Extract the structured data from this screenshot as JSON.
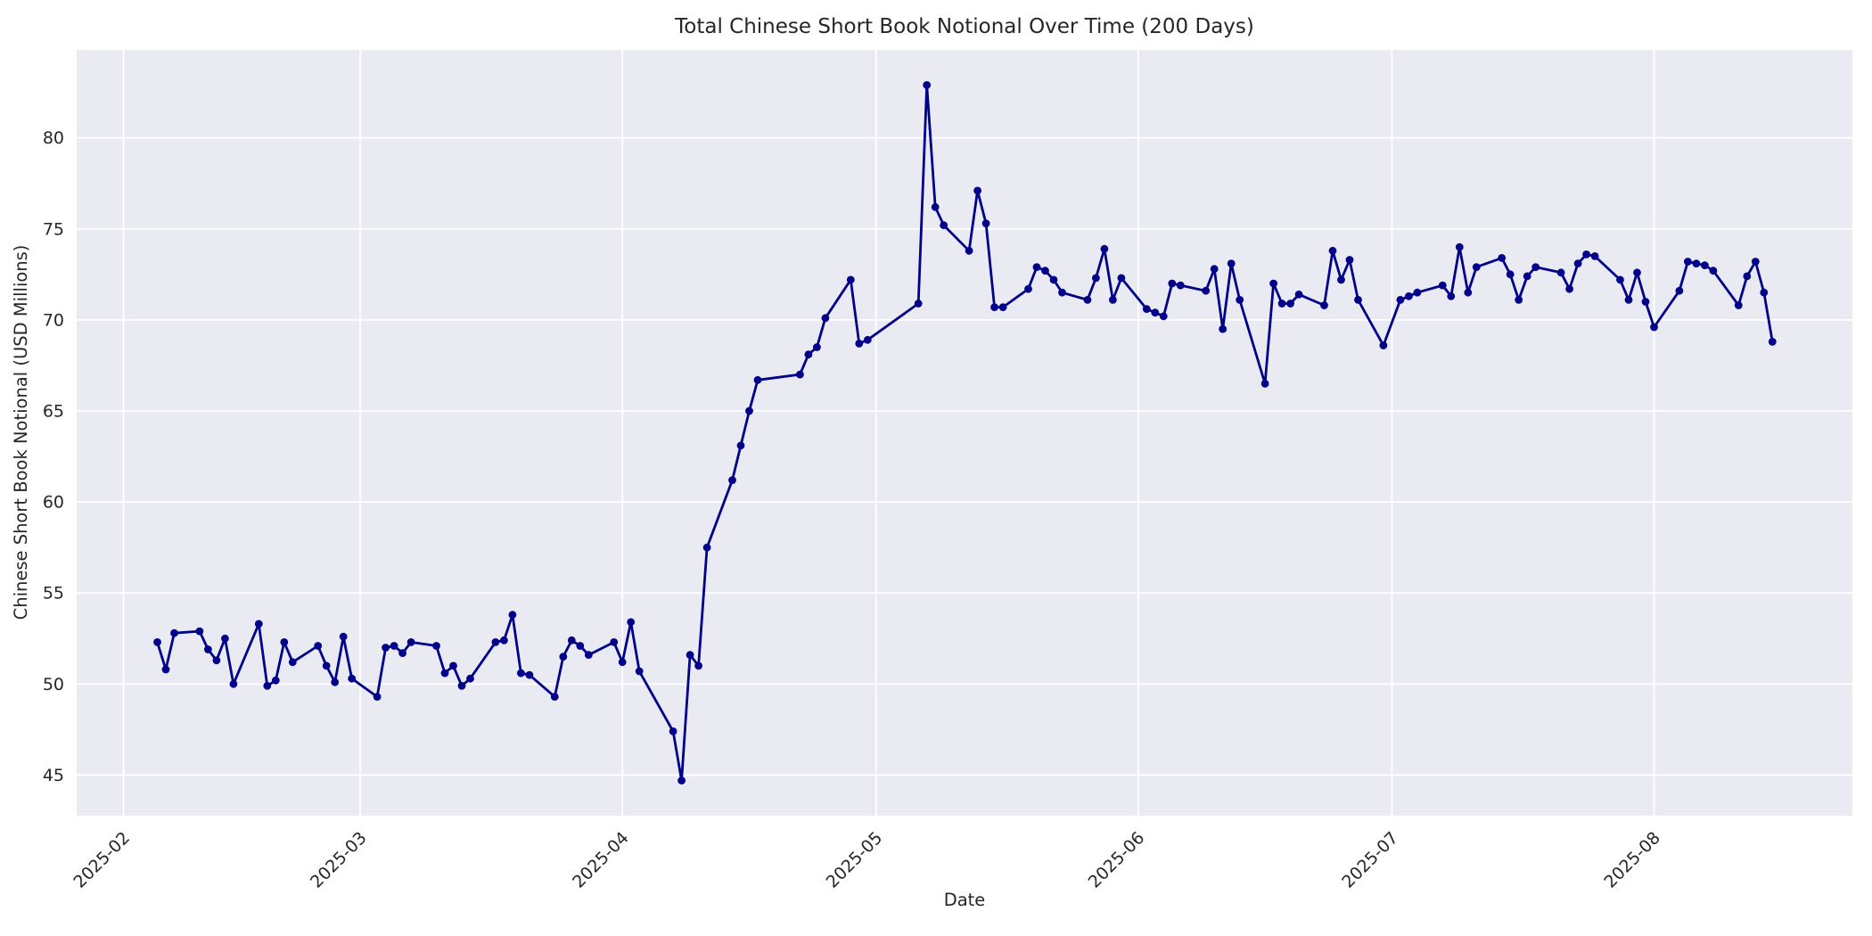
{
  "figure": {
    "title": "Total Chinese Short Book Notional Over Time (200 Days)",
    "xlabel": "Date",
    "ylabel": "Chinese Short Book Notional (USD Millions)"
  },
  "chart_data": {
    "type": "line",
    "title": "Total Chinese Short Book Notional Over Time (200 Days)",
    "xlabel": "Date",
    "ylabel": "Chinese Short Book Notional (USD Millions)",
    "legend": false,
    "grid": true,
    "marker": "circle",
    "ylim": [
      42.77,
      84.83
    ],
    "xlim": [
      "2025-01-26T11:00:00Z",
      "2025-08-24T11:00:00Z"
    ],
    "y_ticks": [
      45,
      50,
      55,
      60,
      65,
      70,
      75,
      80
    ],
    "x_ticks": [
      {
        "date": "2025-02-01",
        "label": "2025-02"
      },
      {
        "date": "2025-03-01",
        "label": "2025-03"
      },
      {
        "date": "2025-04-01",
        "label": "2025-04"
      },
      {
        "date": "2025-05-01",
        "label": "2025-05"
      },
      {
        "date": "2025-06-01",
        "label": "2025-06"
      },
      {
        "date": "2025-07-01",
        "label": "2025-07"
      },
      {
        "date": "2025-08-01",
        "label": "2025-08"
      }
    ],
    "colors": {
      "line": "#00008B",
      "marker": "#00008B",
      "plot_bg": "#EAEAF2",
      "grid": "#FFFFFF",
      "text": "#262626",
      "figure_bg": "#FFFFFF"
    },
    "x": [
      "2025-02-05",
      "2025-02-06",
      "2025-02-07",
      "2025-02-10",
      "2025-02-11",
      "2025-02-12",
      "2025-02-13",
      "2025-02-14",
      "2025-02-17",
      "2025-02-18",
      "2025-02-19",
      "2025-02-20",
      "2025-02-21",
      "2025-02-24",
      "2025-02-25",
      "2025-02-26",
      "2025-02-27",
      "2025-02-28",
      "2025-03-03",
      "2025-03-04",
      "2025-03-05",
      "2025-03-06",
      "2025-03-07",
      "2025-03-10",
      "2025-03-11",
      "2025-03-12",
      "2025-03-13",
      "2025-03-14",
      "2025-03-17",
      "2025-03-18",
      "2025-03-19",
      "2025-03-20",
      "2025-03-21",
      "2025-03-24",
      "2025-03-25",
      "2025-03-26",
      "2025-03-27",
      "2025-03-28",
      "2025-03-31",
      "2025-04-01",
      "2025-04-02",
      "2025-04-03",
      "2025-04-07",
      "2025-04-08",
      "2025-04-09",
      "2025-04-10",
      "2025-04-11",
      "2025-04-14",
      "2025-04-15",
      "2025-04-16",
      "2025-04-17",
      "2025-04-22",
      "2025-04-23",
      "2025-04-24",
      "2025-04-25",
      "2025-04-28",
      "2025-04-29",
      "2025-04-30",
      "2025-05-06",
      "2025-05-07",
      "2025-05-08",
      "2025-05-09",
      "2025-05-12",
      "2025-05-13",
      "2025-05-14",
      "2025-05-15",
      "2025-05-16",
      "2025-05-19",
      "2025-05-20",
      "2025-05-21",
      "2025-05-22",
      "2025-05-23",
      "2025-05-26",
      "2025-05-27",
      "2025-05-28",
      "2025-05-29",
      "2025-05-30",
      "2025-06-02",
      "2025-06-03",
      "2025-06-04",
      "2025-06-05",
      "2025-06-06",
      "2025-06-09",
      "2025-06-10",
      "2025-06-11",
      "2025-06-12",
      "2025-06-13",
      "2025-06-16",
      "2025-06-17",
      "2025-06-18",
      "2025-06-19",
      "2025-06-20",
      "2025-06-23",
      "2025-06-24",
      "2025-06-25",
      "2025-06-26",
      "2025-06-27",
      "2025-06-30",
      "2025-07-02",
      "2025-07-03",
      "2025-07-04",
      "2025-07-07",
      "2025-07-08",
      "2025-07-09",
      "2025-07-10",
      "2025-07-11",
      "2025-07-14",
      "2025-07-15",
      "2025-07-16",
      "2025-07-17",
      "2025-07-18",
      "2025-07-21",
      "2025-07-22",
      "2025-07-23",
      "2025-07-24",
      "2025-07-25",
      "2025-07-28",
      "2025-07-29",
      "2025-07-30",
      "2025-07-31",
      "2025-08-01",
      "2025-08-04",
      "2025-08-05",
      "2025-08-06",
      "2025-08-07",
      "2025-08-08",
      "2025-08-11",
      "2025-08-12",
      "2025-08-13",
      "2025-08-14",
      "2025-08-15"
    ],
    "y": [
      52.3,
      50.8,
      52.8,
      52.9,
      51.9,
      51.3,
      52.5,
      50.0,
      53.3,
      49.9,
      50.2,
      52.3,
      51.2,
      52.1,
      51.0,
      50.1,
      52.6,
      50.3,
      49.3,
      52.0,
      52.1,
      51.7,
      52.3,
      52.1,
      50.6,
      51.0,
      49.9,
      50.3,
      52.3,
      52.4,
      53.8,
      50.6,
      50.5,
      49.3,
      51.5,
      52.4,
      52.1,
      51.6,
      52.3,
      51.2,
      53.4,
      50.7,
      47.4,
      44.7,
      51.6,
      51.0,
      57.5,
      61.2,
      63.1,
      65.0,
      66.7,
      67.0,
      68.1,
      68.5,
      70.1,
      72.2,
      68.7,
      68.9,
      70.9,
      82.9,
      76.2,
      75.2,
      73.8,
      77.1,
      75.3,
      70.7,
      70.7,
      71.7,
      72.9,
      72.7,
      72.2,
      71.5,
      71.1,
      72.3,
      73.9,
      71.1,
      72.3,
      70.6,
      70.4,
      70.2,
      72.0,
      71.9,
      71.6,
      72.8,
      69.5,
      73.1,
      71.1,
      66.5,
      72.0,
      70.9,
      70.9,
      71.4,
      70.8,
      73.8,
      72.2,
      73.3,
      71.1,
      68.6,
      71.1,
      71.3,
      71.5,
      71.9,
      71.3,
      74.0,
      71.5,
      72.9,
      73.4,
      72.5,
      71.1,
      72.4,
      72.9,
      72.6,
      71.7,
      73.1,
      73.6,
      73.5,
      72.2,
      71.1,
      72.6,
      71.0,
      69.6,
      71.6,
      73.2,
      73.1,
      73.0,
      72.7,
      70.8,
      72.4,
      73.2,
      71.5,
      68.8
    ]
  }
}
